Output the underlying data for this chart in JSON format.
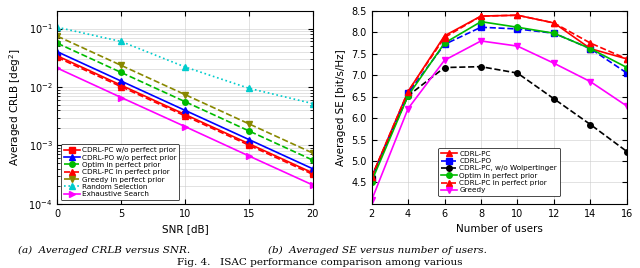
{
  "left": {
    "snr": [
      0,
      5,
      10,
      15,
      20
    ],
    "series": [
      {
        "label": "CDRL-PC w/o perfect prior",
        "color": "#ff0000",
        "linestyle": "-",
        "marker": "s",
        "markersize": 4,
        "values": [
          0.034,
          0.0107,
          0.00338,
          0.00107,
          0.000338
        ]
      },
      {
        "label": "CDRL-PO w/o perfect prior",
        "color": "#0000ff",
        "linestyle": "-",
        "marker": "^",
        "markersize": 4,
        "values": [
          0.04,
          0.0126,
          0.00398,
          0.00126,
          0.000398
        ]
      },
      {
        "label": "Optim in perfect prior",
        "color": "#00bb00",
        "linestyle": "--",
        "marker": "o",
        "markersize": 4,
        "values": [
          0.056,
          0.0177,
          0.0056,
          0.00177,
          0.00056
        ]
      },
      {
        "label": "CDRL-PC in perfect prior",
        "color": "#ff0000",
        "linestyle": "--",
        "marker": "^",
        "markersize": 4,
        "values": [
          0.032,
          0.0101,
          0.0032,
          0.00101,
          0.00032
        ]
      },
      {
        "label": "Greedy in perfect prior",
        "color": "#888800",
        "linestyle": "--",
        "marker": "v",
        "markersize": 4,
        "values": [
          0.074,
          0.0234,
          0.0074,
          0.00234,
          0.00074
        ]
      },
      {
        "label": "Random Selection",
        "color": "#00cccc",
        "linestyle": ":",
        "marker": "^",
        "markersize": 4,
        "values": [
          0.105,
          0.06,
          0.022,
          0.0095,
          0.0052
        ]
      },
      {
        "label": "Exhaustive Search",
        "color": "#ff00ff",
        "linestyle": "-",
        "marker": ">",
        "markersize": 4,
        "values": [
          0.021,
          0.0066,
          0.0021,
          0.00066,
          0.00021
        ]
      }
    ],
    "xlabel": "SNR [dB]",
    "ylabel": "Averaged CRLB [deg$^2$]",
    "ylim": [
      0.0001,
      0.2
    ],
    "xticks": [
      0,
      5,
      10,
      15,
      20
    ],
    "legend_loc": "lower left",
    "title": "(a)  Averaged CRLB versus SNR."
  },
  "right": {
    "users": [
      2,
      4,
      6,
      8,
      10,
      12,
      14,
      16
    ],
    "series": [
      {
        "label": "CDRL-PC",
        "color": "#ff0000",
        "linestyle": "-",
        "marker": "^",
        "markersize": 4,
        "values": [
          4.62,
          6.62,
          7.92,
          8.38,
          8.4,
          8.22,
          7.62,
          7.38
        ]
      },
      {
        "label": "CDRL-PO",
        "color": "#0000ff",
        "linestyle": "--",
        "marker": "s",
        "markersize": 4,
        "values": [
          4.58,
          6.58,
          7.72,
          8.12,
          8.08,
          7.98,
          7.62,
          7.05
        ]
      },
      {
        "label": "CDRL-PC, w/o Wolpertinger",
        "color": "#000000",
        "linestyle": "--",
        "marker": "o",
        "markersize": 4,
        "values": [
          4.62,
          6.52,
          7.18,
          7.2,
          7.05,
          6.45,
          5.85,
          5.22
        ]
      },
      {
        "label": "Optim in perfect prior",
        "color": "#00bb00",
        "linestyle": "-",
        "marker": "o",
        "markersize": 4,
        "values": [
          4.52,
          6.52,
          7.75,
          8.25,
          8.12,
          7.98,
          7.62,
          7.18
        ]
      },
      {
        "label": "CDRL-PC in perfect prior",
        "color": "#ff0000",
        "linestyle": "--",
        "marker": "^",
        "markersize": 4,
        "values": [
          4.62,
          6.62,
          7.88,
          8.38,
          8.4,
          8.22,
          7.75,
          7.38
        ]
      },
      {
        "label": "Greedy",
        "color": "#ff00ff",
        "linestyle": "-",
        "marker": "v",
        "markersize": 4,
        "values": [
          4.08,
          6.22,
          7.35,
          7.8,
          7.68,
          7.28,
          6.85,
          6.28
        ]
      }
    ],
    "xlabel": "Number of users",
    "ylabel": "Averaged SE [bit/s/Hz]",
    "ylim": [
      4.0,
      8.5
    ],
    "yticks": [
      4.5,
      5.0,
      5.5,
      6.0,
      6.5,
      7.0,
      7.5,
      8.0,
      8.5
    ],
    "xticks": [
      2,
      4,
      6,
      8,
      10,
      12,
      14,
      16
    ],
    "legend_loc": "lower center",
    "title": "(b)  Averaged SE versus number of users."
  },
  "fig_caption": "Fig. 4.   ISAC performance comparison among various"
}
